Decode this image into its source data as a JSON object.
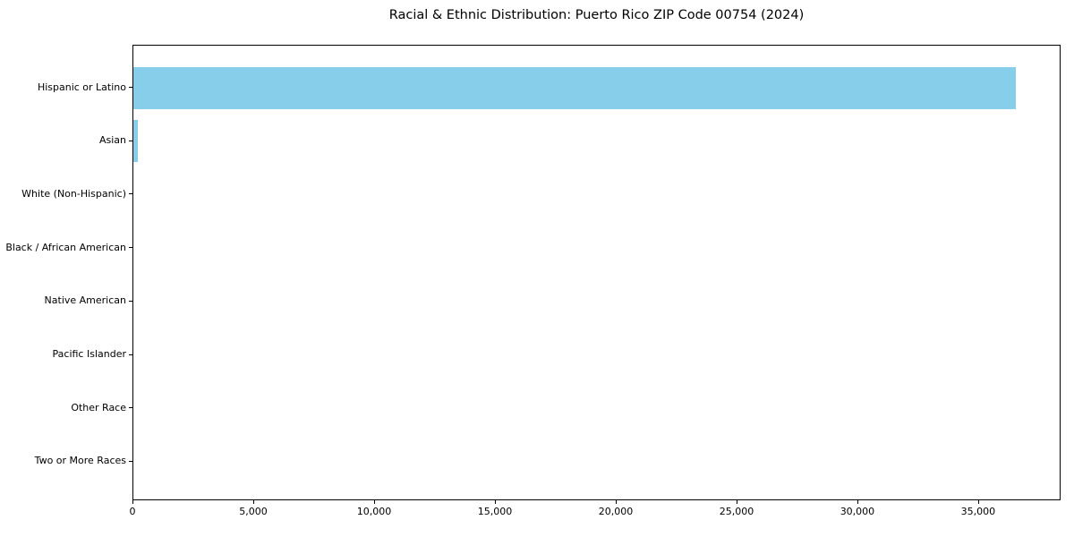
{
  "chart_data": {
    "type": "bar",
    "orientation": "horizontal",
    "title": "Racial & Ethnic Distribution: Puerto Rico ZIP Code 00754 (2024)",
    "categories": [
      "Hispanic or Latino",
      "Asian",
      "White (Non-Hispanic)",
      "Black / African American",
      "Native American",
      "Pacific Islander",
      "Other Race",
      "Two or More Races"
    ],
    "values": [
      36600,
      185,
      0,
      0,
      0,
      0,
      0,
      0
    ],
    "xlabel": "",
    "ylabel": "",
    "xlim": [
      0,
      38410
    ],
    "xticks": [
      0,
      5000,
      10000,
      15000,
      20000,
      25000,
      30000,
      35000
    ],
    "xtick_labels": [
      "0",
      "5,000",
      "10,000",
      "15,000",
      "20,000",
      "25,000",
      "30,000",
      "35,000"
    ],
    "bar_color": "#87CEEB",
    "axis_color": "#000000",
    "text_color": "#000000",
    "background_color": "#FFFFFF",
    "grid": false,
    "legend": null
  }
}
